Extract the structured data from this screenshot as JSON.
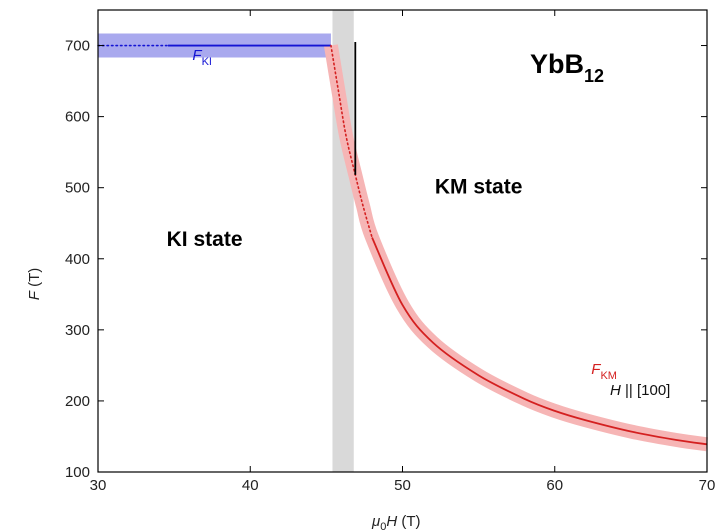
{
  "chart_data": {
    "type": "line",
    "title": "",
    "xlabel": {
      "symbol": "μ",
      "sub": "0",
      "var": "H",
      "unit": " (T)"
    },
    "ylabel": {
      "var": "F",
      "unit": " (T)"
    },
    "xlim": [
      30,
      70
    ],
    "ylim": [
      100,
      750
    ],
    "x_ticks": [
      30,
      40,
      50,
      60,
      70
    ],
    "y_ticks": [
      100,
      200,
      300,
      400,
      500,
      600,
      700
    ],
    "grid": false,
    "legend": "none",
    "material": {
      "base": "YbB",
      "sub": "12"
    },
    "field_direction": {
      "var": "H",
      "rest": " || [100]"
    },
    "states": [
      {
        "label": "KI state",
        "x": 37,
        "y": 418
      },
      {
        "label": "KM state",
        "x": 55,
        "y": 492
      }
    ],
    "transition_band": {
      "x_from": 45.4,
      "x_to": 46.8,
      "color": "#d9d9d9"
    },
    "jump_line": {
      "x": 46.9,
      "y_from": 518,
      "y_to": 705,
      "color": "#000000"
    },
    "series": [
      {
        "label": {
          "var": "F",
          "sub": "KI"
        },
        "label_pos": {
          "x": 36.2,
          "y": 680
        },
        "color": "#1414d4",
        "band_color": "#a9a9ee",
        "band_halfwidth": 12,
        "dotted_segment": {
          "x": [
            30,
            34.6
          ],
          "y": [
            700,
            700
          ]
        },
        "solid_segment": {
          "x": [
            34.6,
            45.3
          ],
          "y": [
            700,
            700
          ]
        }
      },
      {
        "label": {
          "var": "F",
          "sub": "KM"
        },
        "label_pos": {
          "x": 62.4,
          "y": 238
        },
        "color": "#d42020",
        "band_color": "#f6b5b5",
        "band_halfwidth": 7,
        "dotted_segment": {
          "x": [
            45.3,
            45.8,
            46.3,
            46.9,
            47.4,
            48.0
          ],
          "y": [
            700,
            635,
            572,
            518,
            475,
            430
          ]
        },
        "solid_segment": {
          "x": [
            48.0,
            50,
            52,
            55,
            58,
            60,
            62,
            65,
            68,
            70
          ],
          "y": [
            430,
            335,
            282,
            236,
            203,
            186,
            173,
            157,
            145,
            139
          ]
        }
      }
    ]
  }
}
